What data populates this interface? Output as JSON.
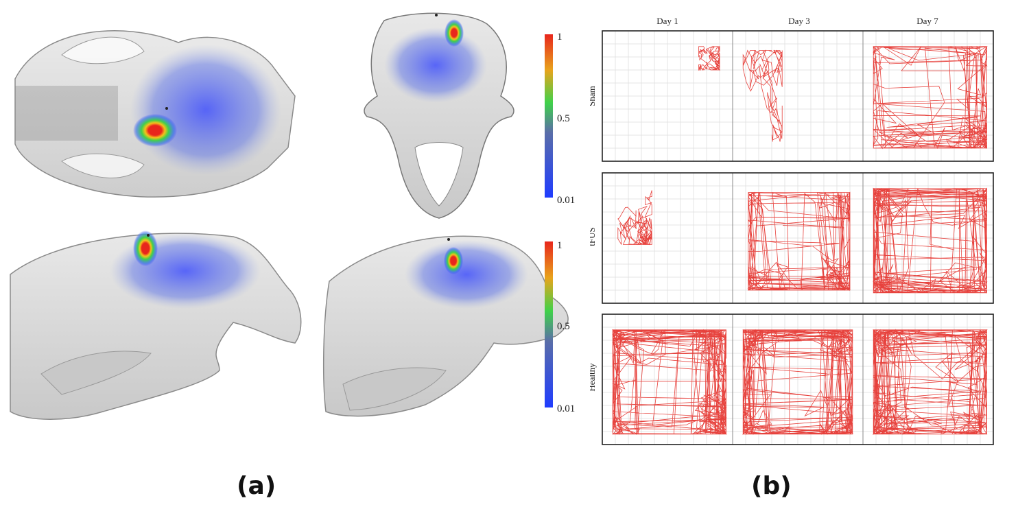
{
  "figure": {
    "captions": {
      "a": "(a)",
      "b": "(b)"
    }
  },
  "panel_a": {
    "colorbars": [
      {
        "ticks": [
          "1",
          "0.5",
          "0.01"
        ]
      },
      {
        "ticks": [
          "1",
          "0.5",
          "0.01"
        ]
      }
    ],
    "colors": {
      "bone": "#9a9a9a",
      "heat_low": "#2a3cff",
      "heat_mid": "#3fd14a",
      "heat_high": "#e8261c"
    }
  },
  "panel_b": {
    "columns": [
      "Day 1",
      "Day 3",
      "Day 7"
    ],
    "rows": [
      "Sham",
      "tFUS",
      "Healthy"
    ],
    "colors": {
      "trace": "#e3211b",
      "grid": "#dcdcdc",
      "frame": "#222222"
    }
  }
}
